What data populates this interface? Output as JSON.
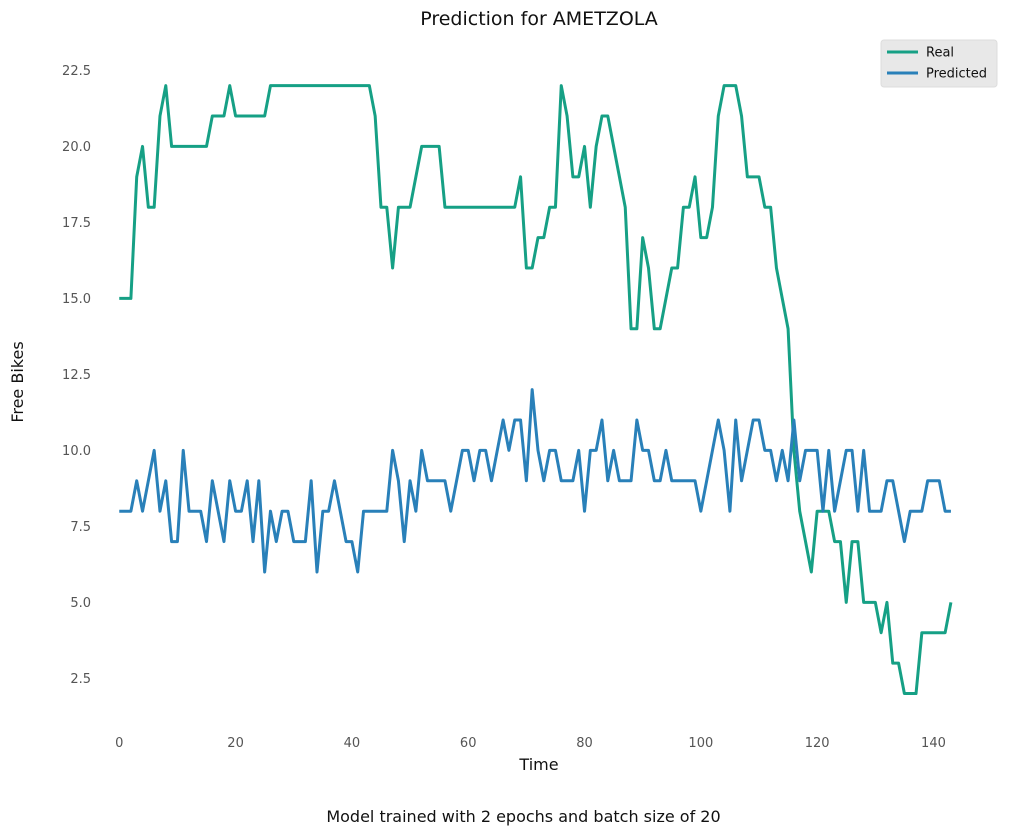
{
  "chart_data": {
    "type": "line",
    "title": "Prediction for AMETZOLA",
    "xlabel": "Time",
    "ylabel": "Free Bikes",
    "xlim": [
      -4,
      148
    ],
    "ylim": [
      0.9,
      23.6
    ],
    "xticks": [
      0,
      20,
      40,
      60,
      80,
      100,
      120,
      140
    ],
    "yticks": [
      2.5,
      5.0,
      7.5,
      10.0,
      12.5,
      15.0,
      17.5,
      20.0,
      22.5
    ],
    "grid": false,
    "legend_position": "top-right",
    "series": [
      {
        "name": "Real",
        "color": "#16a085",
        "values": [
          15,
          15,
          15,
          19,
          20,
          18,
          18,
          21,
          22,
          20,
          20,
          20,
          20,
          20,
          20,
          20,
          21,
          21,
          21,
          22,
          21,
          21,
          21,
          21,
          21,
          21,
          22,
          22,
          22,
          22,
          22,
          22,
          22,
          22,
          22,
          22,
          22,
          22,
          22,
          22,
          22,
          22,
          22,
          22,
          21,
          18,
          18,
          16,
          18,
          18,
          18,
          19,
          20,
          20,
          20,
          20,
          18,
          18,
          18,
          18,
          18,
          18,
          18,
          18,
          18,
          18,
          18,
          18,
          18,
          19,
          16,
          16,
          17,
          17,
          18,
          18,
          22,
          21,
          19,
          19,
          20,
          18,
          20,
          21,
          21,
          20,
          19,
          18,
          14,
          14,
          17,
          16,
          14,
          14,
          15,
          16,
          16,
          18,
          18,
          19,
          17,
          17,
          18,
          21,
          22,
          22,
          22,
          21,
          19,
          19,
          19,
          18,
          18,
          16,
          15,
          14,
          10,
          8,
          7,
          6,
          8,
          8,
          8,
          7,
          7,
          5,
          7,
          7,
          5,
          5,
          5,
          4,
          5,
          3,
          3,
          2,
          2,
          2,
          4,
          4,
          4,
          4,
          4,
          5
        ]
      },
      {
        "name": "Predicted",
        "color": "#2980b9",
        "values": [
          8,
          8,
          8,
          9,
          8,
          9,
          10,
          8,
          9,
          7,
          7,
          10,
          8,
          8,
          8,
          7,
          9,
          8,
          7,
          9,
          8,
          8,
          9,
          7,
          9,
          6,
          8,
          7,
          8,
          8,
          7,
          7,
          7,
          9,
          6,
          8,
          8,
          9,
          8,
          7,
          7,
          6,
          8,
          8,
          8,
          8,
          8,
          10,
          9,
          7,
          9,
          8,
          10,
          9,
          9,
          9,
          9,
          8,
          9,
          10,
          10,
          9,
          10,
          10,
          9,
          10,
          11,
          10,
          11,
          11,
          9,
          12,
          10,
          9,
          10,
          10,
          9,
          9,
          9,
          10,
          8,
          10,
          10,
          11,
          9,
          10,
          9,
          9,
          9,
          11,
          10,
          10,
          9,
          9,
          10,
          9,
          9,
          9,
          9,
          9,
          8,
          9,
          10,
          11,
          10,
          8,
          11,
          9,
          10,
          11,
          11,
          10,
          10,
          9,
          10,
          9,
          11,
          9,
          10,
          10,
          10,
          8,
          10,
          8,
          9,
          10,
          10,
          8,
          10,
          8,
          8,
          8,
          9,
          9,
          8,
          7,
          8,
          8,
          8,
          9,
          9,
          9,
          8,
          8
        ]
      }
    ]
  },
  "caption": "Model trained with 2 epochs and batch size of 20"
}
